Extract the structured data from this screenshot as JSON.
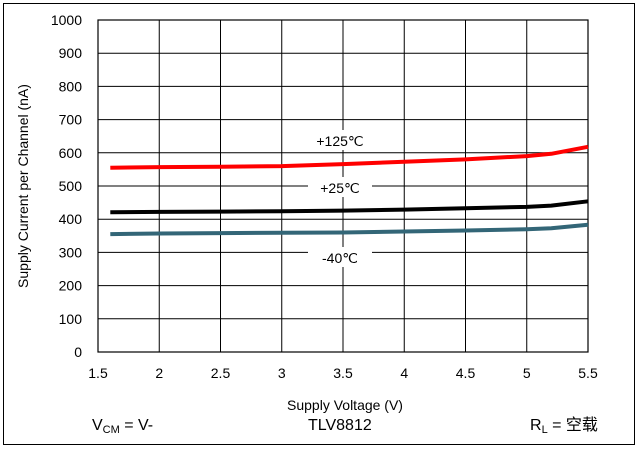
{
  "chart_data": {
    "type": "line",
    "xlabel": "Supply Voltage (V)",
    "ylabel": "Supply Current per Channel (nA)",
    "xlim": [
      1.5,
      5.5
    ],
    "ylim": [
      0,
      1000
    ],
    "xticks": [
      "1.5",
      "2",
      "2.5",
      "3",
      "3.5",
      "4",
      "4.5",
      "5",
      "5.5"
    ],
    "yticks": [
      "0",
      "100",
      "200",
      "300",
      "400",
      "500",
      "600",
      "700",
      "800",
      "900",
      "1000"
    ],
    "grid": true,
    "series": [
      {
        "name": "+125℃",
        "color": "#ff0000",
        "x": [
          1.6,
          2.0,
          2.5,
          3.0,
          3.5,
          4.0,
          4.5,
          5.0,
          5.2,
          5.5
        ],
        "y": [
          555,
          557,
          558,
          560,
          566,
          573,
          580,
          590,
          597,
          618
        ]
      },
      {
        "name": "+25℃",
        "color": "#000000",
        "x": [
          1.6,
          2.0,
          2.5,
          3.0,
          3.5,
          4.0,
          4.5,
          5.0,
          5.2,
          5.5
        ],
        "y": [
          421,
          422,
          423,
          424,
          426,
          429,
          433,
          437,
          441,
          454
        ]
      },
      {
        "name": "-40℃",
        "color": "#336677",
        "x": [
          1.6,
          2.0,
          2.5,
          3.0,
          3.5,
          4.0,
          4.5,
          5.0,
          5.2,
          5.5
        ],
        "y": [
          355,
          357,
          358,
          359,
          360,
          363,
          366,
          370,
          373,
          383
        ]
      }
    ]
  },
  "footer": {
    "vcm_main": "V",
    "vcm_sub": "CM",
    "vcm_rest": " = V-",
    "part": "TLV8812",
    "rl_main": "R",
    "rl_sub": "L",
    "rl_rest": " = 空载"
  }
}
